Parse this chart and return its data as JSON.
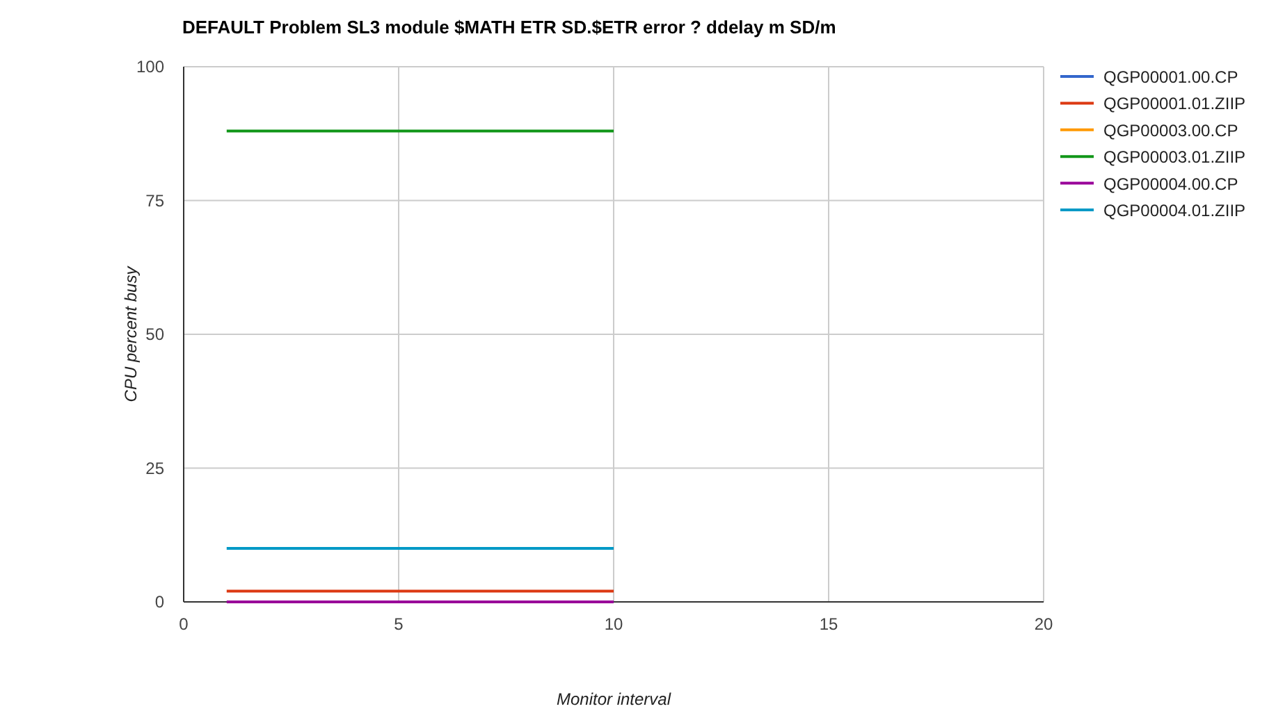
{
  "chart_data": {
    "type": "line",
    "title": "DEFAULT Problem SL3 module $MATH ETR SD.$ETR error ? ddelay m SD/m",
    "xlabel": "Monitor interval",
    "ylabel": "CPU percent busy",
    "x": [
      1,
      10
    ],
    "series": [
      {
        "name": "QGP00001.00.CP",
        "color": "#3366cc",
        "values": [
          null,
          null
        ]
      },
      {
        "name": "QGP00001.01.ZIIP",
        "color": "#dc3912",
        "values": [
          2,
          2
        ]
      },
      {
        "name": "QGP00003.00.CP",
        "color": "#ff9900",
        "values": [
          null,
          null
        ]
      },
      {
        "name": "QGP00003.01.ZIIP",
        "color": "#109618",
        "values": [
          88,
          88
        ]
      },
      {
        "name": "QGP00004.00.CP",
        "color": "#990099",
        "values": [
          0,
          0
        ]
      },
      {
        "name": "QGP00004.01.ZIIP",
        "color": "#0099c6",
        "values": [
          10,
          10
        ]
      }
    ],
    "xlim": [
      0,
      20
    ],
    "xticks": [
      0,
      5,
      10,
      15,
      20
    ],
    "ylim": [
      0,
      100
    ],
    "yticks": [
      0,
      25,
      50,
      75,
      100
    ],
    "grid": true,
    "legend": "right",
    "marker": "none",
    "line_style": "solid"
  }
}
